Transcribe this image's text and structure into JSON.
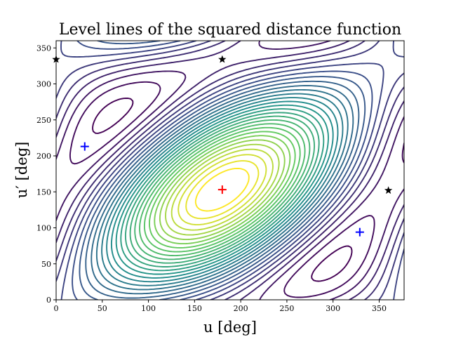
{
  "chart_data": {
    "type": "contour",
    "title": "Level lines of the squared distance function",
    "xlabel": "u [deg]",
    "ylabel": "u′ [deg]",
    "xlim": [
      0,
      360
    ],
    "ylim": [
      0,
      360
    ],
    "xticks": [
      0,
      50,
      100,
      150,
      200,
      250,
      300,
      350
    ],
    "yticks": [
      0,
      50,
      100,
      150,
      200,
      250,
      300,
      350
    ],
    "grid": false,
    "colormap": "viridis",
    "contour_levels": 30,
    "markers": [
      {
        "x": 180,
        "y": 153,
        "marker": "plus",
        "color": "#ff0000"
      },
      {
        "x": 31,
        "y": 213,
        "marker": "plus",
        "color": "#0000ff"
      },
      {
        "x": 329,
        "y": 94,
        "marker": "plus",
        "color": "#0000ff"
      },
      {
        "x": 0,
        "y": 334,
        "marker": "star",
        "color": "#000000"
      },
      {
        "x": 180,
        "y": 334,
        "marker": "star",
        "color": "#000000"
      },
      {
        "x": 360,
        "y": 152,
        "marker": "star",
        "color": "#000000"
      }
    ]
  }
}
